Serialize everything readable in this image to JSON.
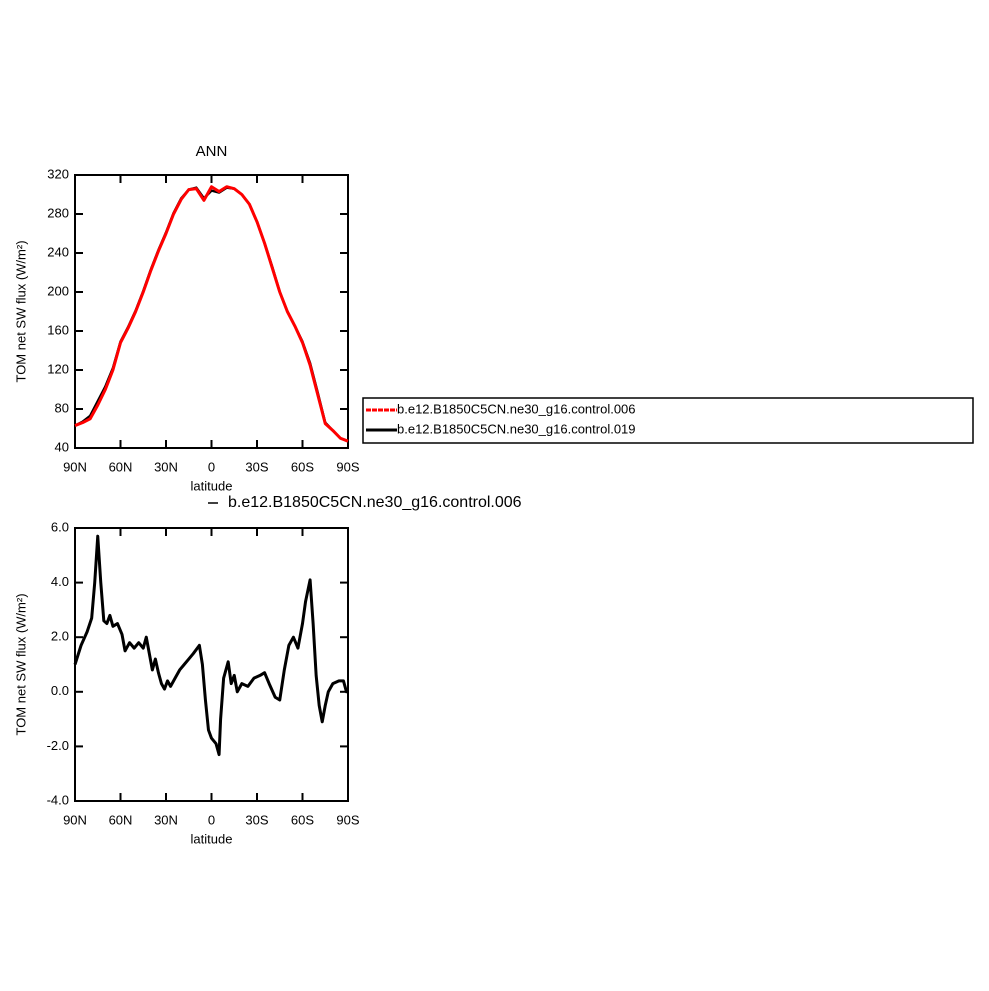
{
  "chart_data": [
    {
      "type": "line",
      "title": "ANN",
      "x_label": "latitude",
      "y_label": "TOM net SW flux (W/m²)",
      "x": [
        90,
        85,
        80,
        75,
        70,
        65,
        60,
        55,
        50,
        45,
        40,
        35,
        30,
        25,
        20,
        15,
        10,
        5,
        0,
        -5,
        -10,
        -15,
        -20,
        -25,
        -30,
        -35,
        -40,
        -45,
        -50,
        -55,
        -60,
        -65,
        -70,
        -75,
        -80,
        -85,
        -90
      ],
      "xlim": [
        90,
        -90
      ],
      "xticks": [
        {
          "value": 90,
          "label": "90N"
        },
        {
          "value": 60,
          "label": "60N"
        },
        {
          "value": 30,
          "label": "30N"
        },
        0,
        {
          "value": -30,
          "label": "30S"
        },
        {
          "value": -60,
          "label": "60S"
        },
        {
          "value": -90,
          "label": "90S"
        }
      ],
      "ylim": [
        40,
        320
      ],
      "yticks": [
        40,
        80,
        120,
        160,
        200,
        240,
        280,
        320
      ],
      "legend": "right",
      "series": [
        {
          "name": "b.e12.B1850C5CN.ne30_g16.control.006",
          "color": "#ff0000",
          "values": [
            63,
            66,
            70,
            84,
            100,
            120,
            148,
            163,
            180,
            200,
            222,
            242,
            260,
            280,
            295,
            305,
            306,
            294,
            308,
            303,
            308,
            306,
            300,
            290,
            272,
            250,
            225,
            200,
            180,
            165,
            148,
            125,
            95,
            65,
            58,
            50,
            47
          ]
        },
        {
          "name": "b.e12.B1850C5CN.ne30_g16.control.019",
          "color": "#000000",
          "values": [
            63,
            67,
            73,
            88,
            103,
            122,
            149,
            164,
            181,
            201,
            223,
            243,
            261,
            281,
            296,
            305,
            307,
            296,
            304,
            302,
            307,
            306,
            300,
            290,
            272,
            250,
            226,
            200,
            180,
            165,
            149,
            127,
            97,
            66,
            58,
            50,
            47
          ]
        }
      ]
    },
    {
      "type": "line",
      "x_label": "latitude",
      "y_label": "TOM net SW flux (W/m²)",
      "x": [
        90,
        86,
        82,
        79,
        77,
        75,
        73,
        71,
        69,
        67,
        65,
        62,
        59,
        57,
        54,
        51,
        48,
        45,
        43,
        41,
        39,
        37,
        35,
        33,
        31,
        29,
        27,
        24,
        21,
        18,
        15,
        12,
        8,
        6,
        4,
        2,
        0,
        -3,
        -5,
        -6,
        -8,
        -11,
        -13,
        -15,
        -17,
        -20,
        -24,
        -28,
        -32,
        -35,
        -38,
        -42,
        -45,
        -48,
        -51,
        -54,
        -57,
        -60,
        -62,
        -65,
        -67,
        -69,
        -71,
        -73,
        -75,
        -77,
        -80,
        -84,
        -87,
        -89,
        -90
      ],
      "xlim": [
        90,
        -90
      ],
      "xticks": [
        {
          "value": 90,
          "label": "90N"
        },
        {
          "value": 60,
          "label": "60N"
        },
        {
          "value": 30,
          "label": "30N"
        },
        0,
        {
          "value": -30,
          "label": "30S"
        },
        {
          "value": -60,
          "label": "60S"
        },
        {
          "value": -90,
          "label": "90S"
        }
      ],
      "ylim": [
        -4,
        6
      ],
      "yticks": [
        {
          "value": -4,
          "label": "-4.0"
        },
        {
          "value": -2,
          "label": "-2.0"
        },
        {
          "value": 0,
          "label": "0.0"
        },
        {
          "value": 2,
          "label": "2.0"
        },
        {
          "value": 4,
          "label": "4.0"
        },
        {
          "value": 6,
          "label": "6.0"
        }
      ],
      "legend": "top",
      "series": [
        {
          "name": "b.e12.B1850C5CN.ne30_g16.control.006",
          "color": "#000000",
          "values": [
            1.0,
            1.7,
            2.2,
            2.7,
            4.0,
            5.7,
            4.0,
            2.6,
            2.5,
            2.8,
            2.4,
            2.5,
            2.1,
            1.5,
            1.8,
            1.6,
            1.8,
            1.6,
            2.0,
            1.4,
            0.8,
            1.2,
            0.7,
            0.3,
            0.1,
            0.4,
            0.2,
            0.5,
            0.8,
            1.0,
            1.2,
            1.4,
            1.7,
            1.0,
            -0.3,
            -1.4,
            -1.7,
            -1.9,
            -2.3,
            -1.0,
            0.5,
            1.1,
            0.3,
            0.6,
            0.0,
            0.3,
            0.2,
            0.5,
            0.6,
            0.7,
            0.3,
            -0.2,
            -0.3,
            0.8,
            1.7,
            2.0,
            1.6,
            2.5,
            3.3,
            4.1,
            2.5,
            0.6,
            -0.5,
            -1.1,
            -0.5,
            0.0,
            0.3,
            0.4,
            0.4,
            0.0,
            0.0
          ]
        }
      ]
    }
  ]
}
